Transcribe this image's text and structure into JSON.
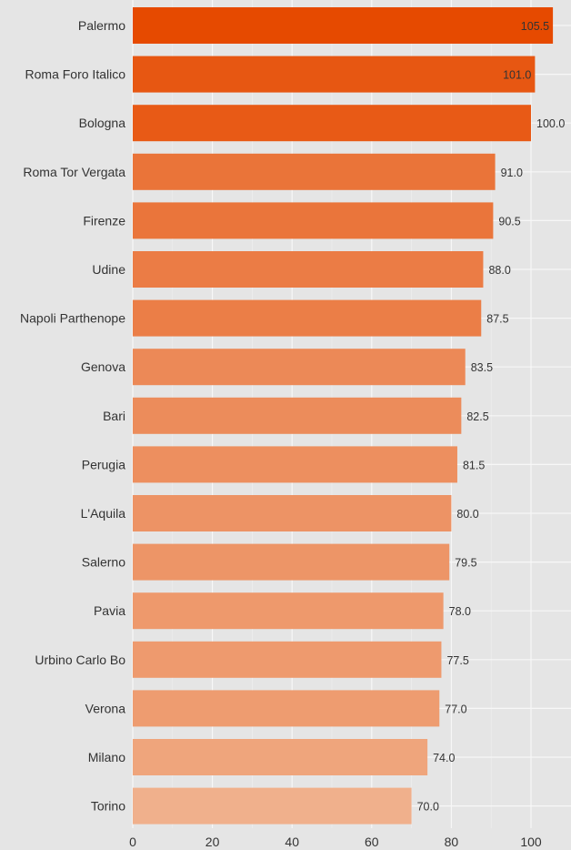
{
  "chart_data": {
    "type": "bar",
    "orientation": "horizontal",
    "categories": [
      "Palermo",
      "Roma Foro Italico",
      "Bologna",
      "Roma Tor Vergata",
      "Firenze",
      "Udine",
      "Napoli Parthenope",
      "Genova",
      "Bari",
      "Perugia",
      "L'Aquila",
      "Salerno",
      "Pavia",
      "Urbino Carlo Bo",
      "Verona",
      "Milano",
      "Torino"
    ],
    "values": [
      105.5,
      101.0,
      100.0,
      91.0,
      90.5,
      88.0,
      87.5,
      83.5,
      82.5,
      81.5,
      80.0,
      79.5,
      78.0,
      77.5,
      77.0,
      74.0,
      70.0
    ],
    "value_labels": [
      "105.5",
      "101.0",
      "100.0",
      "91.0",
      "90.5",
      "88.0",
      "87.5",
      "83.5",
      "82.5",
      "81.5",
      "80.0",
      "79.5",
      "78.0",
      "77.5",
      "77.0",
      "74.0",
      "70.0"
    ],
    "x_ticks": [
      "0",
      "20",
      "40",
      "60",
      "80",
      "100"
    ],
    "title": "",
    "xlabel": "",
    "ylabel": "",
    "xlim": [
      0,
      108
    ],
    "grid": true,
    "legend": "none",
    "colors": {
      "background": "#e5e5e5",
      "bar_high": "#e64a00",
      "bar_low": "#f0b08c",
      "text": "#333333"
    }
  }
}
